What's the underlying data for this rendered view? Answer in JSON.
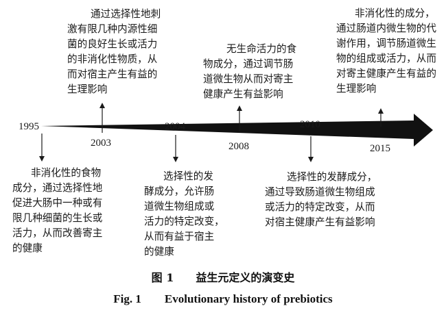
{
  "timeline": {
    "events": [
      {
        "year": "1995",
        "lines": [
          "非消化性的食物",
          "成分，通过选择性地",
          "促进大肠中一种或有",
          "限几种细菌的生长或",
          "活力，从而改善寄主",
          "的健康"
        ]
      },
      {
        "year": "2003",
        "lines": [
          "通过选择性地刺",
          "激有限几种内源性细",
          "菌的良好生长或活力",
          "的非消化性物质，从",
          "而对宿主产生有益的",
          "生理影响"
        ]
      },
      {
        "year": "2004",
        "lines": [
          "选择性的发",
          "酵成分，允许肠",
          "道微生物组成或",
          "活力的特定改变，",
          "从而有益于宿主",
          "的健康"
        ]
      },
      {
        "year": "2008",
        "lines": [
          "无生命活力的食",
          "物成分，通过调节肠",
          "道微生物从而对寄主",
          "健康产生有益影响"
        ]
      },
      {
        "year": "2010",
        "lines": [
          "选择性的发酵成分，",
          "通过导致肠道微生物组成",
          "或活力的特定改变，从而",
          "对宿主健康产生有益影响"
        ]
      },
      {
        "year": "2015",
        "lines": [
          "非消化性的成分，",
          "通过肠道内微生物的代",
          "谢作用，调节肠道微生",
          "物的组成或活力，从而",
          "对寄主健康产生有益的",
          "生理影响"
        ]
      }
    ]
  },
  "caption": {
    "cn": "图 1　　益生元定义的演变史",
    "en": "Fig. 1　　Evolutionary history of prebiotics"
  }
}
